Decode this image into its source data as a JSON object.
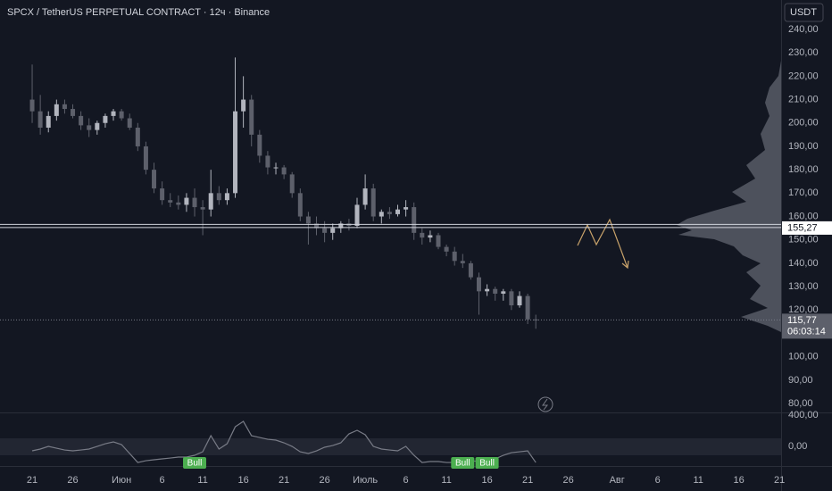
{
  "header": {
    "title": "SPCX / TetherUS PERPETUAL CONTRACT · 12ч · Binance",
    "currency": "USDT"
  },
  "chart_data": [
    {
      "type": "candlestick",
      "up_color": "#b2b5be",
      "down_color": "#5d606b",
      "x": [
        0,
        1,
        2,
        3,
        4,
        5,
        6,
        7,
        8,
        9,
        10,
        11,
        12,
        13,
        14,
        15,
        16,
        17,
        18,
        19,
        20,
        21,
        22,
        23,
        24,
        25,
        26,
        27,
        28,
        29,
        30,
        31,
        32,
        33,
        34,
        35,
        36,
        37,
        38,
        39,
        40,
        41,
        42,
        43,
        44,
        45,
        46,
        47,
        48,
        49,
        50,
        51,
        52,
        53,
        54,
        55,
        56,
        57,
        58,
        59,
        60,
        61,
        62
      ],
      "open": [
        210,
        205,
        198,
        203,
        208,
        206,
        203,
        199,
        197,
        200,
        203,
        205,
        202,
        198,
        190,
        180,
        172,
        167,
        166,
        165,
        168,
        164,
        163,
        170,
        167,
        170,
        205,
        210,
        195,
        186,
        181,
        181,
        178,
        170,
        160,
        157,
        155,
        153,
        155,
        157,
        156,
        165,
        172,
        160,
        162,
        161,
        163,
        164,
        153,
        151,
        152,
        147,
        145,
        141,
        140,
        134,
        128,
        129,
        127,
        128,
        122,
        126,
        116
      ],
      "high": [
        225,
        212,
        205,
        210,
        210,
        208,
        205,
        202,
        201,
        204,
        206,
        206,
        204,
        200,
        192,
        183,
        175,
        170,
        169,
        170,
        172,
        167,
        180,
        173,
        172,
        228,
        220,
        212,
        197,
        188,
        183,
        182,
        179,
        172,
        162,
        160,
        158,
        157,
        158,
        159,
        168,
        178,
        174,
        163,
        164,
        165,
        167,
        166,
        155,
        154,
        153,
        148,
        147,
        144,
        141,
        136,
        131,
        130,
        129,
        129,
        128,
        127,
        118
      ],
      "low": [
        200,
        195,
        196,
        201,
        204,
        202,
        197,
        194,
        195,
        198,
        201,
        201,
        197,
        188,
        178,
        170,
        165,
        164,
        163,
        162,
        160,
        152,
        160,
        165,
        165,
        168,
        198,
        190,
        183,
        178,
        178,
        176,
        168,
        158,
        148,
        152,
        149,
        150,
        153,
        154,
        155,
        163,
        158,
        157,
        159,
        160,
        160,
        150,
        148,
        149,
        146,
        143,
        139,
        138,
        133,
        118,
        126,
        124,
        124,
        120,
        121,
        114,
        112
      ],
      "close": [
        205,
        198,
        203,
        208,
        206,
        203,
        199,
        197,
        200,
        203,
        205,
        202,
        198,
        190,
        180,
        172,
        167,
        166,
        165,
        168,
        164,
        163,
        170,
        167,
        170,
        205,
        210,
        195,
        186,
        181,
        181,
        178,
        170,
        160,
        157,
        155,
        153,
        155,
        157,
        156,
        165,
        172,
        160,
        162,
        161,
        163,
        164,
        153,
        151,
        152,
        147,
        145,
        141,
        140,
        134,
        128,
        129,
        127,
        128,
        122,
        126,
        116,
        115.77
      ],
      "xlim": [
        -3.96,
        92.2
      ],
      "xticks": [
        {
          "value": 0,
          "label": "21"
        },
        {
          "value": 5,
          "label": "26"
        },
        {
          "value": 11,
          "label": "Июн"
        },
        {
          "value": 16,
          "label": "6"
        },
        {
          "value": 21,
          "label": "11"
        },
        {
          "value": 26,
          "label": "16"
        },
        {
          "value": 31,
          "label": "21"
        },
        {
          "value": 36,
          "label": "26"
        },
        {
          "value": 41,
          "label": "Июль"
        },
        {
          "value": 46,
          "label": "6"
        },
        {
          "value": 51,
          "label": "11"
        },
        {
          "value": 56,
          "label": "16"
        },
        {
          "value": 61,
          "label": "21"
        },
        {
          "value": 66,
          "label": "26"
        },
        {
          "value": 72,
          "label": "Авг"
        },
        {
          "value": 77,
          "label": "6"
        },
        {
          "value": 82,
          "label": "11"
        },
        {
          "value": 87,
          "label": "16"
        },
        {
          "value": 92,
          "label": "21"
        }
      ],
      "ylim": [
        76.2,
        252.6
      ],
      "yticks": [
        {
          "value": 240,
          "label": "240,00"
        },
        {
          "value": 230,
          "label": "230,00"
        },
        {
          "value": 220,
          "label": "220,00"
        },
        {
          "value": 210,
          "label": "210,00"
        },
        {
          "value": 200,
          "label": "200,00"
        },
        {
          "value": 190,
          "label": "190,00"
        },
        {
          "value": 180,
          "label": "180,00"
        },
        {
          "value": 170,
          "label": "170,00"
        },
        {
          "value": 160,
          "label": "160,00"
        },
        {
          "value": 150,
          "label": "150,00"
        },
        {
          "value": 140,
          "label": "140,00"
        },
        {
          "value": 130,
          "label": "130,00"
        },
        {
          "value": 120,
          "label": "120,00"
        },
        {
          "value": 100,
          "label": "100,00"
        },
        {
          "value": 90,
          "label": "90,00"
        },
        {
          "value": 80,
          "label": "80,00"
        }
      ],
      "price_lines": [
        {
          "value": 155.27,
          "label": "155,27"
        },
        {
          "value": 156.6
        }
      ],
      "last_price": {
        "value": 115.77,
        "label": "115,77",
        "countdown": "06:03:14"
      }
    },
    {
      "type": "line",
      "color": "#787b86",
      "x": [
        0,
        1,
        2,
        3,
        4,
        5,
        6,
        7,
        8,
        9,
        10,
        11,
        12,
        13,
        14,
        15,
        16,
        17,
        18,
        19,
        20,
        21,
        22,
        23,
        24,
        25,
        26,
        27,
        28,
        29,
        30,
        31,
        32,
        33,
        34,
        35,
        36,
        37,
        38,
        39,
        40,
        41,
        42,
        43,
        44,
        45,
        46,
        47,
        48,
        49,
        50,
        51,
        52,
        53,
        54,
        55,
        56,
        57,
        58,
        59,
        60,
        61,
        62
      ],
      "values": [
        -57,
        -34,
        0,
        -23,
        -46,
        -57,
        -46,
        -34,
        0,
        34,
        57,
        23,
        -91,
        -206,
        -183,
        -171,
        -160,
        -149,
        -137,
        -137,
        -114,
        -69,
        137,
        -34,
        34,
        251,
        320,
        137,
        114,
        91,
        80,
        46,
        0,
        -69,
        -91,
        -57,
        -11,
        11,
        46,
        160,
        206,
        149,
        0,
        -34,
        -46,
        -57,
        0,
        -114,
        -206,
        -194,
        -194,
        -206,
        -206,
        -194,
        -183,
        -194,
        -183,
        -160,
        -114,
        -80,
        -69,
        -57,
        -206
      ],
      "ylim": [
        -251,
        423
      ],
      "yticks": [
        {
          "value": 400,
          "label": "400,00"
        },
        {
          "value": 0,
          "label": "0,00"
        }
      ],
      "band": [
        -114,
        103
      ],
      "signals": [
        {
          "label": "Bull",
          "x": 20
        },
        {
          "label": "Bull",
          "x": 53
        },
        {
          "label": "Bull",
          "x": 56
        }
      ]
    }
  ]
}
